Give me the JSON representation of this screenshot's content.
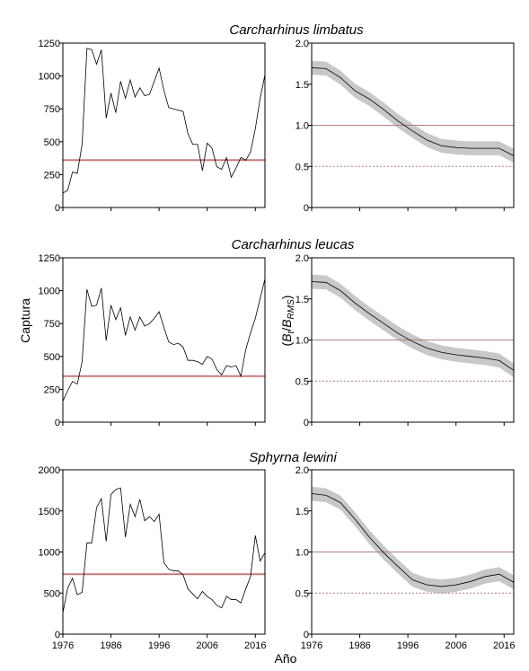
{
  "figure": {
    "xlabel": "Año",
    "ylabel_left": "Captura",
    "ylabel_right": "(Bt/BRMS)",
    "ylabel_right_parts": {
      "open": "(",
      "b1": "B",
      "sub1": "t",
      "slash": "/",
      "b2": "B",
      "sub2": "RMS",
      "close": ")"
    }
  },
  "colors": {
    "line": "#000000",
    "reference": "#c47b7b",
    "band": "#c8c8c8",
    "limit": "#b08080"
  },
  "chart_data": [
    {
      "type": "line",
      "panel": "catch",
      "species": "Carcharhinus limbatus",
      "title": "Carcharhinus limbatus",
      "xlim": [
        1976,
        2018
      ],
      "ylim": [
        0,
        1250
      ],
      "yticks": [
        "0",
        "250",
        "500",
        "750",
        "1000",
        "1250"
      ],
      "ytick_values": [
        0,
        250,
        500,
        750,
        1000,
        1250
      ],
      "x": [
        1976,
        1977,
        1978,
        1979,
        1980,
        1981,
        1982,
        1983,
        1984,
        1985,
        1986,
        1987,
        1988,
        1989,
        1990,
        1991,
        1992,
        1993,
        1994,
        1995,
        1996,
        1997,
        1998,
        1999,
        2000,
        2001,
        2002,
        2003,
        2004,
        2005,
        2006,
        2007,
        2008,
        2009,
        2010,
        2011,
        2012,
        2013,
        2014,
        2015,
        2016,
        2017,
        2018
      ],
      "values": [
        110,
        130,
        270,
        260,
        480,
        1210,
        1200,
        1090,
        1200,
        680,
        870,
        720,
        960,
        830,
        970,
        840,
        910,
        850,
        860,
        960,
        1060,
        890,
        760,
        750,
        740,
        730,
        560,
        480,
        480,
        280,
        490,
        450,
        310,
        290,
        380,
        230,
        300,
        380,
        360,
        420,
        600,
        830,
        1010
      ],
      "reference_line": 360
    },
    {
      "type": "line",
      "panel": "biomass",
      "species": "Carcharhinus limbatus",
      "xlim": [
        1976,
        2018
      ],
      "ylim": [
        0,
        2.0
      ],
      "yticks": [
        "0",
        "0.5",
        "1.0",
        "1.5",
        "2.0"
      ],
      "ytick_values": [
        0,
        0.5,
        1.0,
        1.5,
        2.0
      ],
      "xticks_hidden": true,
      "x": [
        1976,
        1979,
        1982,
        1985,
        1988,
        1991,
        1994,
        1997,
        2000,
        2003,
        2006,
        2009,
        2012,
        2015,
        2018
      ],
      "values": [
        1.7,
        1.69,
        1.58,
        1.42,
        1.32,
        1.19,
        1.05,
        0.93,
        0.82,
        0.75,
        0.73,
        0.72,
        0.72,
        0.72,
        0.63
      ],
      "band_halfwidth": 0.085,
      "reference_lines": [
        1.0,
        0.5
      ]
    },
    {
      "type": "line",
      "panel": "catch",
      "species": "Carcharhinus leucas",
      "title": "Carcharhinus leucas",
      "xlim": [
        1976,
        2018
      ],
      "ylim": [
        0,
        1250
      ],
      "yticks": [
        "0",
        "250",
        "500",
        "750",
        "1000",
        "1250"
      ],
      "ytick_values": [
        0,
        250,
        500,
        750,
        1000,
        1250
      ],
      "x": [
        1976,
        1977,
        1978,
        1979,
        1980,
        1981,
        1982,
        1983,
        1984,
        1985,
        1986,
        1987,
        1988,
        1989,
        1990,
        1991,
        1992,
        1993,
        1994,
        1995,
        1996,
        1997,
        1998,
        1999,
        2000,
        2001,
        2002,
        2003,
        2004,
        2005,
        2006,
        2007,
        2008,
        2009,
        2010,
        2011,
        2012,
        2013,
        2014,
        2015,
        2016,
        2017,
        2018
      ],
      "values": [
        160,
        240,
        310,
        290,
        460,
        1010,
        880,
        890,
        1020,
        620,
        890,
        780,
        870,
        660,
        800,
        700,
        800,
        730,
        750,
        790,
        840,
        720,
        610,
        590,
        600,
        570,
        470,
        470,
        460,
        440,
        500,
        480,
        400,
        360,
        430,
        420,
        430,
        350,
        550,
        680,
        790,
        940,
        1090
      ],
      "reference_line": 350
    },
    {
      "type": "line",
      "panel": "biomass",
      "species": "Carcharhinus leucas",
      "xlim": [
        1976,
        2018
      ],
      "ylim": [
        0,
        2.0
      ],
      "yticks": [
        "0",
        "0.5",
        "1.0",
        "1.5",
        "2.0"
      ],
      "ytick_values": [
        0,
        0.5,
        1.0,
        1.5,
        2.0
      ],
      "xticks_hidden": true,
      "x": [
        1976,
        1979,
        1982,
        1985,
        1988,
        1991,
        1994,
        1997,
        2000,
        2003,
        2006,
        2009,
        2012,
        2015,
        2018
      ],
      "values": [
        1.71,
        1.7,
        1.6,
        1.45,
        1.32,
        1.2,
        1.08,
        0.98,
        0.9,
        0.85,
        0.82,
        0.8,
        0.78,
        0.75,
        0.63
      ],
      "band_halfwidth": 0.085,
      "reference_lines": [
        1.0,
        0.5
      ]
    },
    {
      "type": "line",
      "panel": "catch",
      "species": "Sphyrna lewini",
      "title": "Sphyrna lewini",
      "xlim": [
        1976,
        2018
      ],
      "ylim": [
        0,
        2000
      ],
      "yticks": [
        "0",
        "500",
        "1000",
        "1500",
        "2000"
      ],
      "ytick_values": [
        0,
        500,
        1000,
        1500,
        2000
      ],
      "xticks": [
        "1976",
        "1986",
        "1996",
        "2006",
        "2016"
      ],
      "xtick_values": [
        1976,
        1986,
        1996,
        2006,
        2016
      ],
      "x": [
        1976,
        1977,
        1978,
        1979,
        1980,
        1981,
        1982,
        1983,
        1984,
        1985,
        1986,
        1987,
        1988,
        1989,
        1990,
        1991,
        1992,
        1993,
        1994,
        1995,
        1996,
        1997,
        1998,
        1999,
        2000,
        2001,
        2002,
        2003,
        2004,
        2005,
        2006,
        2007,
        2008,
        2009,
        2010,
        2011,
        2012,
        2013,
        2014,
        2015,
        2016,
        2017,
        2018
      ],
      "values": [
        260,
        560,
        680,
        480,
        510,
        1110,
        1110,
        1540,
        1650,
        1130,
        1700,
        1760,
        1780,
        1180,
        1580,
        1430,
        1640,
        1380,
        1430,
        1370,
        1460,
        870,
        790,
        770,
        770,
        720,
        550,
        490,
        430,
        520,
        460,
        420,
        350,
        320,
        460,
        420,
        420,
        380,
        550,
        700,
        1200,
        890,
        990
      ],
      "reference_line": 730
    },
    {
      "type": "line",
      "panel": "biomass",
      "species": "Sphyrna lewini",
      "xlim": [
        1976,
        2018
      ],
      "ylim": [
        0,
        2.0
      ],
      "yticks": [
        "0",
        "0.5",
        "1.0",
        "1.5",
        "2.0"
      ],
      "ytick_values": [
        0,
        0.5,
        1.0,
        1.5,
        2.0
      ],
      "xticks": [
        "1976",
        "1986",
        "1996",
        "2006",
        "2016"
      ],
      "xtick_values": [
        1976,
        1986,
        1996,
        2006,
        2016
      ],
      "x": [
        1976,
        1979,
        1982,
        1985,
        1988,
        1991,
        1994,
        1997,
        2000,
        2003,
        2006,
        2009,
        2012,
        2015,
        2018
      ],
      "values": [
        1.71,
        1.69,
        1.6,
        1.4,
        1.18,
        0.99,
        0.82,
        0.66,
        0.6,
        0.58,
        0.6,
        0.64,
        0.7,
        0.73,
        0.63
      ],
      "band_halfwidth": 0.085,
      "reference_lines": [
        1.0,
        0.5
      ]
    }
  ]
}
